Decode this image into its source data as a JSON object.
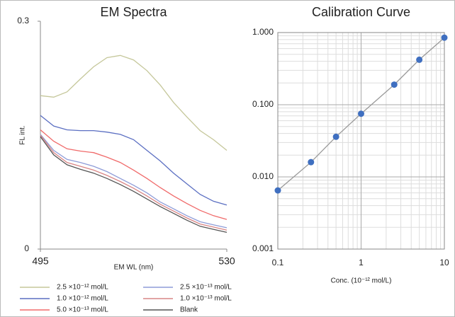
{
  "chart_data": [
    {
      "type": "line",
      "title": "EM Spectra",
      "x_label": "EM WL (nm)",
      "y_label": "FL int.",
      "x": [
        495,
        497.5,
        500,
        502.5,
        505,
        507.5,
        510,
        512.5,
        515,
        517.5,
        520,
        522.5,
        525,
        527.5,
        530
      ],
      "xlim": [
        495,
        530
      ],
      "xticks": [
        495,
        530
      ],
      "ylim": [
        0,
        0.3
      ],
      "yticks": [
        0,
        0.3
      ],
      "legend": "bottom",
      "series": [
        {
          "name": "2.5 ×10⁻¹² mol/L",
          "color": "#c5c79a",
          "values": [
            0.202,
            0.2,
            0.207,
            0.224,
            0.24,
            0.252,
            0.255,
            0.249,
            0.235,
            0.216,
            0.193,
            0.174,
            0.156,
            0.144,
            0.13
          ]
        },
        {
          "name": "1.0 ×10⁻¹² mol/L",
          "color": "#5b6fc2",
          "values": [
            0.176,
            0.162,
            0.157,
            0.156,
            0.156,
            0.154,
            0.151,
            0.144,
            0.13,
            0.116,
            0.1,
            0.086,
            0.072,
            0.063,
            0.058
          ]
        },
        {
          "name": "5.0 ×10⁻¹³ mol/L",
          "color": "#f06a6a",
          "values": [
            0.157,
            0.142,
            0.132,
            0.129,
            0.127,
            0.121,
            0.114,
            0.104,
            0.093,
            0.081,
            0.07,
            0.06,
            0.051,
            0.044,
            0.039
          ]
        },
        {
          "name": "2.5 ×10⁻¹³ mol/L",
          "color": "#8e9cd8",
          "values": [
            0.151,
            0.13,
            0.118,
            0.114,
            0.109,
            0.102,
            0.093,
            0.084,
            0.074,
            0.062,
            0.053,
            0.044,
            0.036,
            0.032,
            0.028
          ]
        },
        {
          "name": "1.0 ×10⁻¹³ mol/L",
          "color": "#d98585",
          "values": [
            0.15,
            0.127,
            0.114,
            0.109,
            0.104,
            0.097,
            0.089,
            0.08,
            0.07,
            0.059,
            0.05,
            0.041,
            0.033,
            0.029,
            0.025
          ]
        },
        {
          "name": "Blank",
          "color": "#555555",
          "values": [
            0.148,
            0.124,
            0.111,
            0.105,
            0.1,
            0.093,
            0.085,
            0.076,
            0.066,
            0.056,
            0.047,
            0.038,
            0.03,
            0.026,
            0.022
          ]
        }
      ]
    },
    {
      "type": "scatter",
      "title": "Calibration Curve",
      "x_label": "Conc. (10⁻¹² mol/L)",
      "x": [
        0.1,
        0.25,
        0.5,
        1,
        2.5,
        5,
        10
      ],
      "values": [
        0.0065,
        0.016,
        0.036,
        0.075,
        0.19,
        0.42,
        0.85
      ],
      "color": "#3f6fc0",
      "trendline": true,
      "trendline_color": "#999999",
      "xscale": "log",
      "yscale": "log",
      "grid": true,
      "minor_grid": true,
      "xlim": [
        0.1,
        10
      ],
      "xticks": [
        0.1,
        1,
        10
      ],
      "ylim": [
        0.001,
        1
      ],
      "yticks": [
        {
          "value": 0.001,
          "label": "0.001"
        },
        {
          "value": 0.01,
          "label": "0.010"
        },
        {
          "value": 0.1,
          "label": "0.100"
        },
        {
          "value": 1,
          "label": "1.000"
        }
      ]
    }
  ]
}
